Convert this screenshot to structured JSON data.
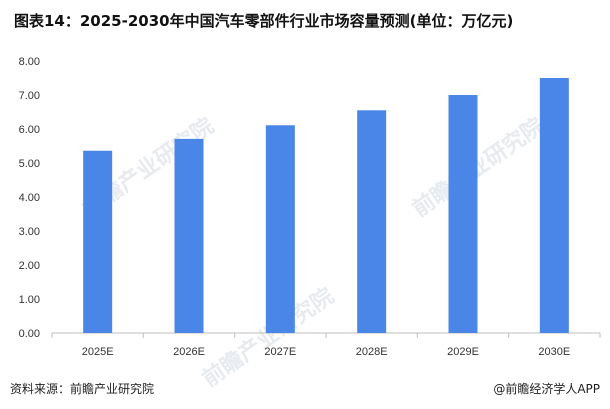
{
  "title": "图表14：2025-2030年中国汽车零部件行业市场容量预测(单位：万亿元)",
  "source": "资料来源：前瞻产业研究院",
  "credit": "@前瞻经济学人APP",
  "watermark": "前瞻产业研究院",
  "colors": {
    "bar": "#4a86e8",
    "axis": "#bfbfbf"
  },
  "chart_data": {
    "type": "bar",
    "title": "图表14：2025-2030年中国汽车零部件行业市场容量预测(单位：万亿元)",
    "categories": [
      "2025E",
      "2026E",
      "2027E",
      "2028E",
      "2029E",
      "2030E"
    ],
    "values": [
      5.36,
      5.71,
      6.11,
      6.55,
      7.0,
      7.5
    ],
    "ylim": [
      0,
      8
    ],
    "yticks": [
      "0.00",
      "1.00",
      "2.00",
      "3.00",
      "4.00",
      "5.00",
      "6.00",
      "7.00",
      "8.00"
    ],
    "grid": false,
    "legend": "none"
  }
}
